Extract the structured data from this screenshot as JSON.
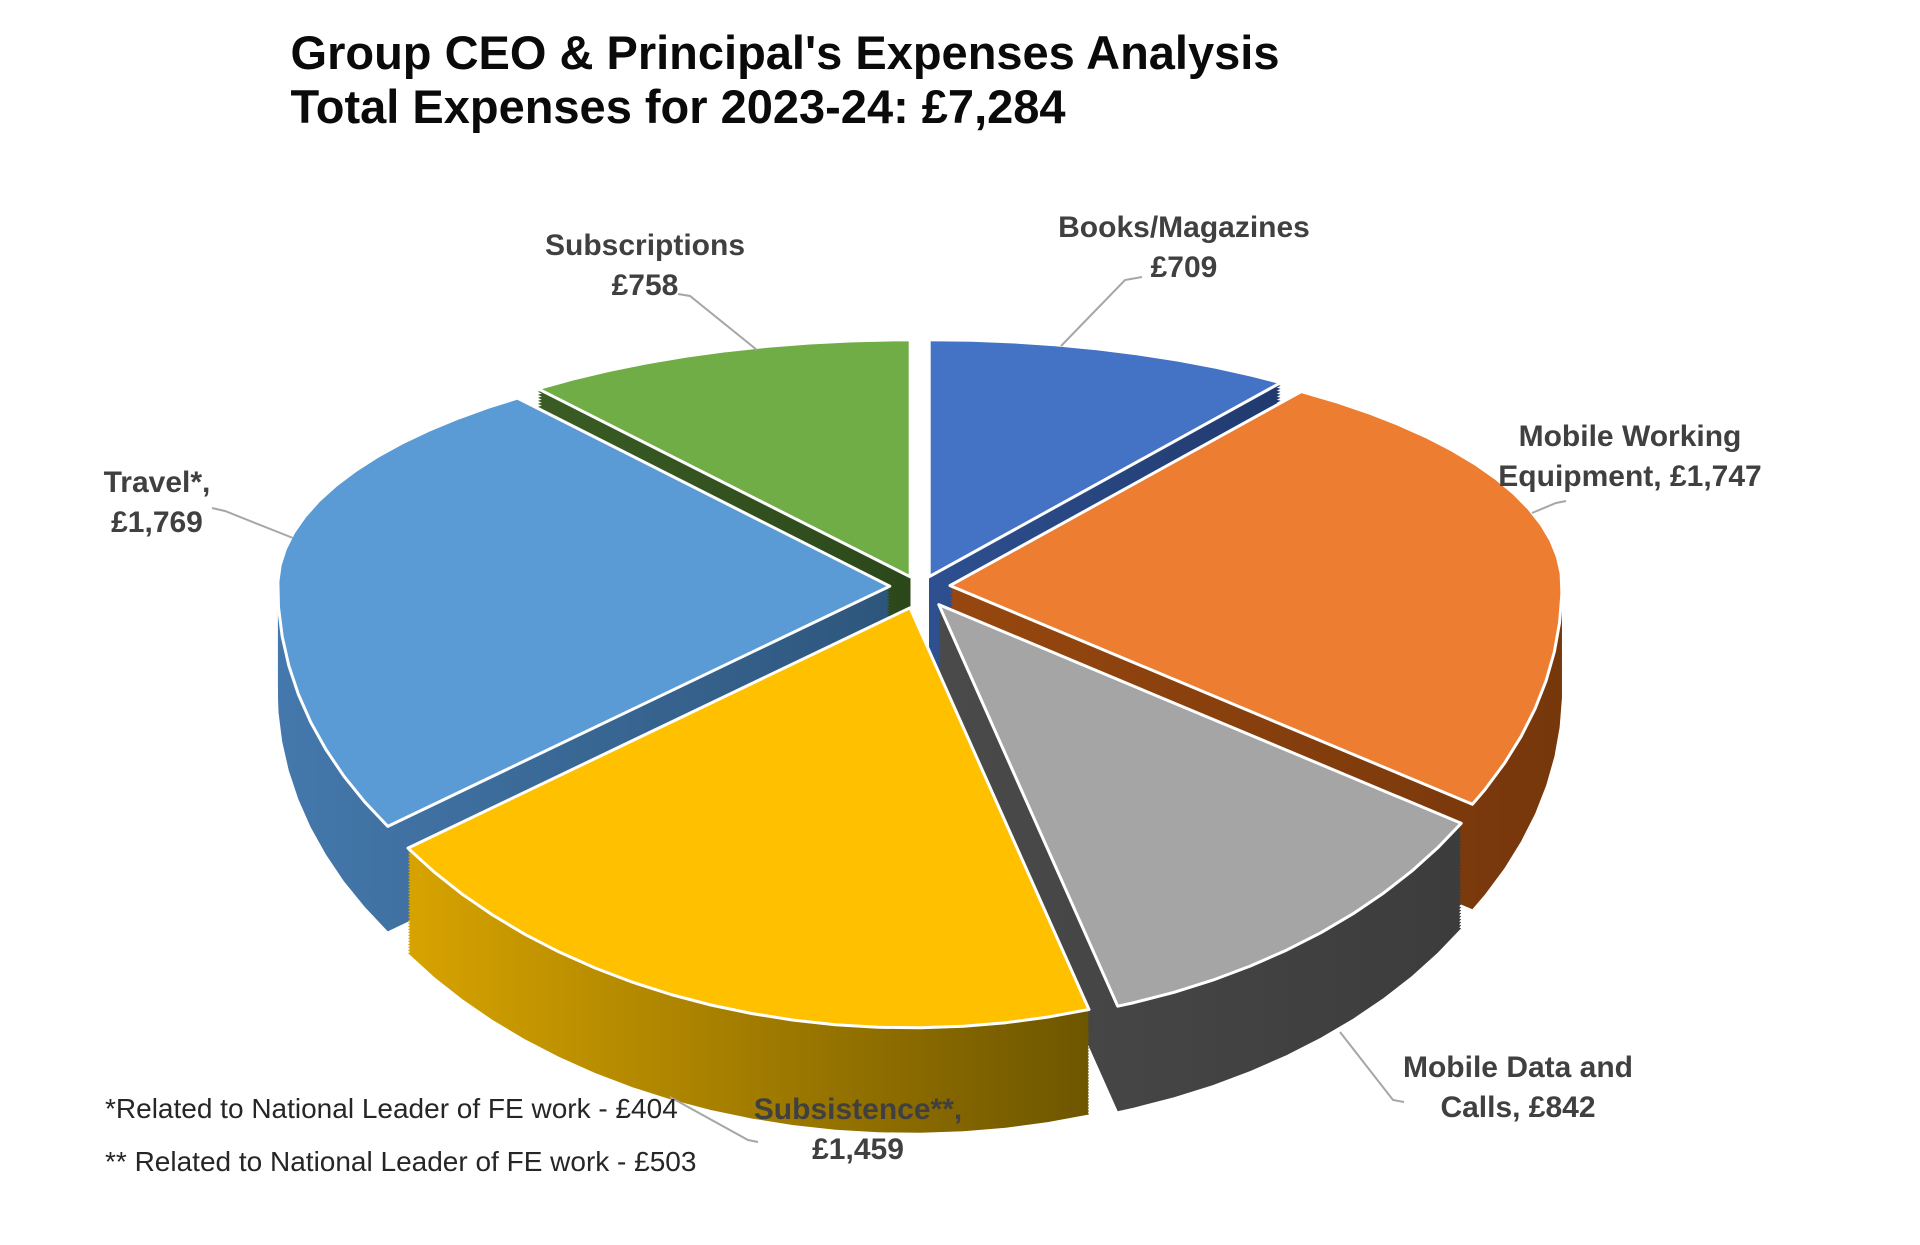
{
  "title": {
    "line1": "Group CEO & Principal's Expenses Analysis",
    "line2": "Total Expenses for 2023-24: £7,284"
  },
  "chart_data": {
    "type": "pie",
    "style": "3d-exploded",
    "title": "Group CEO & Principal's Expenses Analysis",
    "subtitle": "Total Expenses for 2023-24: £7,284",
    "total": 7284,
    "currency": "£",
    "start_angle_deg": 0,
    "direction": "clockwise",
    "leader_line_color": "#A6A6A6",
    "label_color": "#404040",
    "slices": [
      {
        "name": "Books/Magazines",
        "value": 709,
        "color": "#4472C4",
        "wall_from": "#2E5090",
        "wall_to": "#203A6E",
        "label_lines": [
          "Books/Magazines",
          "£709"
        ]
      },
      {
        "name": "Mobile Working Equipment",
        "value": 1747,
        "color": "#ED7D31",
        "wall_from": "#97470F",
        "wall_to": "#76370B",
        "label_lines": [
          "Mobile Working",
          "Equipment, £1,747"
        ]
      },
      {
        "name": "Mobile Data and Calls",
        "value": 842,
        "color": "#A5A5A5",
        "wall_from": "#4A4A4A",
        "wall_to": "#3C3C3C",
        "label_lines": [
          "Mobile Data and",
          "Calls, £842"
        ]
      },
      {
        "name": "Subsistence",
        "value": 1459,
        "color": "#FFC000",
        "wall_from": "#D7A300",
        "wall_to": "#6E5600",
        "label_lines": [
          "Subsistence**,",
          "£1,459"
        ]
      },
      {
        "name": "Travel",
        "value": 1769,
        "color": "#5B9BD5",
        "wall_from": "#4478AC",
        "wall_to": "#2E567C",
        "label_lines": [
          "Travel*,",
          "£1,769"
        ]
      },
      {
        "name": "Subscriptions",
        "value": 758,
        "color": "#70AD47",
        "wall_from": "#3A5C24",
        "wall_to": "#2C481B",
        "label_lines": [
          "Subscriptions",
          "£758"
        ]
      }
    ],
    "footnotes": [
      "*Related to National Leader of FE work - £404",
      "** Related to National Leader of FE work - £503"
    ]
  }
}
